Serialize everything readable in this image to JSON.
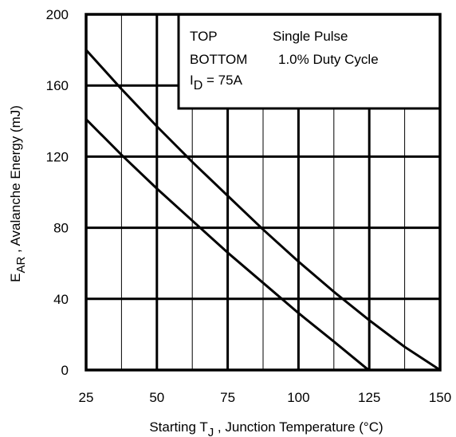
{
  "chart_data": {
    "type": "line",
    "xlabel": {
      "prefix": "Starting T",
      "sub": "J",
      "suffix": " , Junction Temperature (°C)"
    },
    "ylabel": {
      "prefix": "E",
      "sub": "AR",
      "suffix": " , Avalanche Energy (mJ)"
    },
    "xlim": [
      25,
      150
    ],
    "ylim": [
      0,
      200
    ],
    "x_ticks": [
      "25",
      "50",
      "75",
      "100",
      "125",
      "150"
    ],
    "y_ticks": [
      "0",
      "40",
      "80",
      "120",
      "160",
      "200"
    ],
    "x_minor_step": 12.5,
    "grid": true,
    "legend": {
      "placement": "top-right",
      "rows": [
        {
          "key": "TOP",
          "value": "Single Pulse"
        },
        {
          "key": "BOTTOM",
          "value": "1.0% Duty Cycle"
        }
      ],
      "condition": {
        "prefix": "I",
        "sub": "D",
        "suffix": " = 75A"
      }
    },
    "series": [
      {
        "x": [
          25,
          37.5,
          50,
          62.5,
          75,
          87.5,
          100,
          112.5,
          125,
          137.5,
          150
        ],
        "y": [
          180,
          158,
          137,
          117,
          98,
          79,
          61,
          44,
          28,
          13,
          0
        ]
      },
      {
        "x": [
          25,
          37.5,
          50,
          62.5,
          75,
          87.5,
          100,
          112.5,
          124,
          125,
          130
        ],
        "y": [
          141,
          121,
          102,
          84,
          66,
          49,
          32,
          16,
          1,
          0,
          0
        ]
      }
    ],
    "colors": {
      "line": "#000000",
      "grid_major": "#000000",
      "grid_minor": "#000000"
    }
  }
}
